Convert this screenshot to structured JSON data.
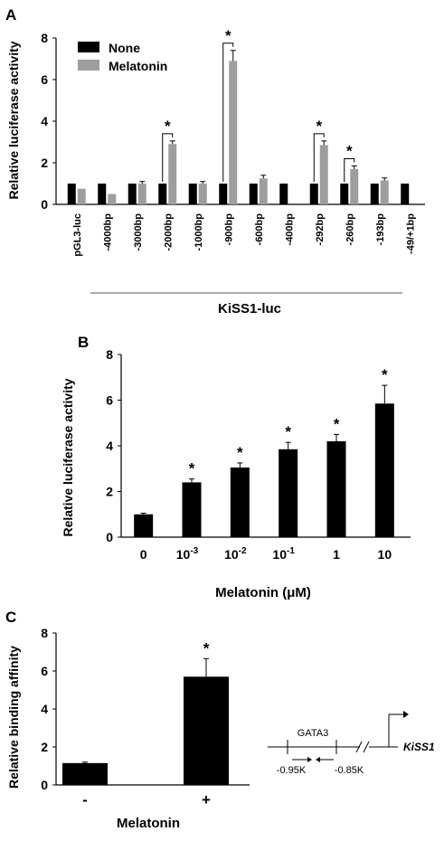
{
  "panels": [
    {
      "letter": "A"
    },
    {
      "letter": "B"
    },
    {
      "letter": "C"
    }
  ],
  "colors": {
    "none": "#000000",
    "melatonin": "#9e9e9e",
    "axis": "#000000"
  },
  "chart_data": [
    {
      "type": "bar",
      "panel": "A",
      "ylabel": "Relative luciferase activity",
      "xgroup_label": "KiSS1-luc",
      "ylim": [
        0,
        8
      ],
      "yticks": [
        "0",
        "2",
        "4",
        "6",
        "8"
      ],
      "categories": [
        "pGL3-luc",
        "-4000bp",
        "-3000bp",
        "-2000bp",
        "-1000bp",
        "-900bp",
        "-600bp",
        "-400bp",
        "-292bp",
        "-260bp",
        "-193bp",
        "-49/+1bp"
      ],
      "series": [
        {
          "name": "None",
          "values": [
            1.0,
            1.0,
            1.0,
            1.0,
            1.0,
            1.0,
            1.0,
            1.0,
            1.0,
            1.0,
            1.0,
            1.0
          ]
        },
        {
          "name": "Melatonin",
          "values": [
            0.75,
            0.5,
            1.0,
            2.9,
            1.0,
            6.9,
            1.25,
            null,
            2.85,
            1.7,
            1.15,
            null
          ],
          "errors": [
            0,
            0,
            0.1,
            0.15,
            0.1,
            0.5,
            0.15,
            0,
            0.2,
            0.15,
            0.12,
            0
          ]
        }
      ],
      "significance": [
        "",
        "",
        "",
        "*",
        "",
        "*",
        "",
        "",
        "*",
        "*",
        "",
        ""
      ],
      "legend": "top-left"
    },
    {
      "type": "bar",
      "panel": "B",
      "ylabel": "Relative luciferase activity",
      "xlabel": "Melatonin (μM)",
      "ylim": [
        0,
        8
      ],
      "yticks": [
        "0",
        "2",
        "4",
        "6",
        "8"
      ],
      "categories": [
        {
          "base": "0",
          "sup": ""
        },
        {
          "base": "10",
          "sup": "-3"
        },
        {
          "base": "10",
          "sup": "-2"
        },
        {
          "base": "10",
          "sup": "-1"
        },
        {
          "base": "1",
          "sup": ""
        },
        {
          "base": "10",
          "sup": ""
        }
      ],
      "values": [
        1.0,
        2.4,
        3.05,
        3.85,
        4.2,
        5.85
      ],
      "errors": [
        0.05,
        0.15,
        0.2,
        0.3,
        0.3,
        0.8
      ],
      "significance": [
        "",
        "*",
        "*",
        "*",
        "*",
        "*"
      ]
    },
    {
      "type": "bar",
      "panel": "C",
      "ylabel": "Relative binding affinity",
      "xlabel": "Melatonin",
      "ylim": [
        0,
        8
      ],
      "yticks": [
        "0",
        "2",
        "4",
        "6",
        "8"
      ],
      "categories": [
        "-",
        "+"
      ],
      "values": [
        1.15,
        5.7
      ],
      "errors": [
        0.05,
        0.95
      ],
      "significance": [
        "",
        "*"
      ]
    }
  ],
  "diagram": {
    "gene_label": "KiSS1",
    "site_label": "GATA3",
    "left_position": "-0.95K",
    "right_position": "-0.85K"
  }
}
